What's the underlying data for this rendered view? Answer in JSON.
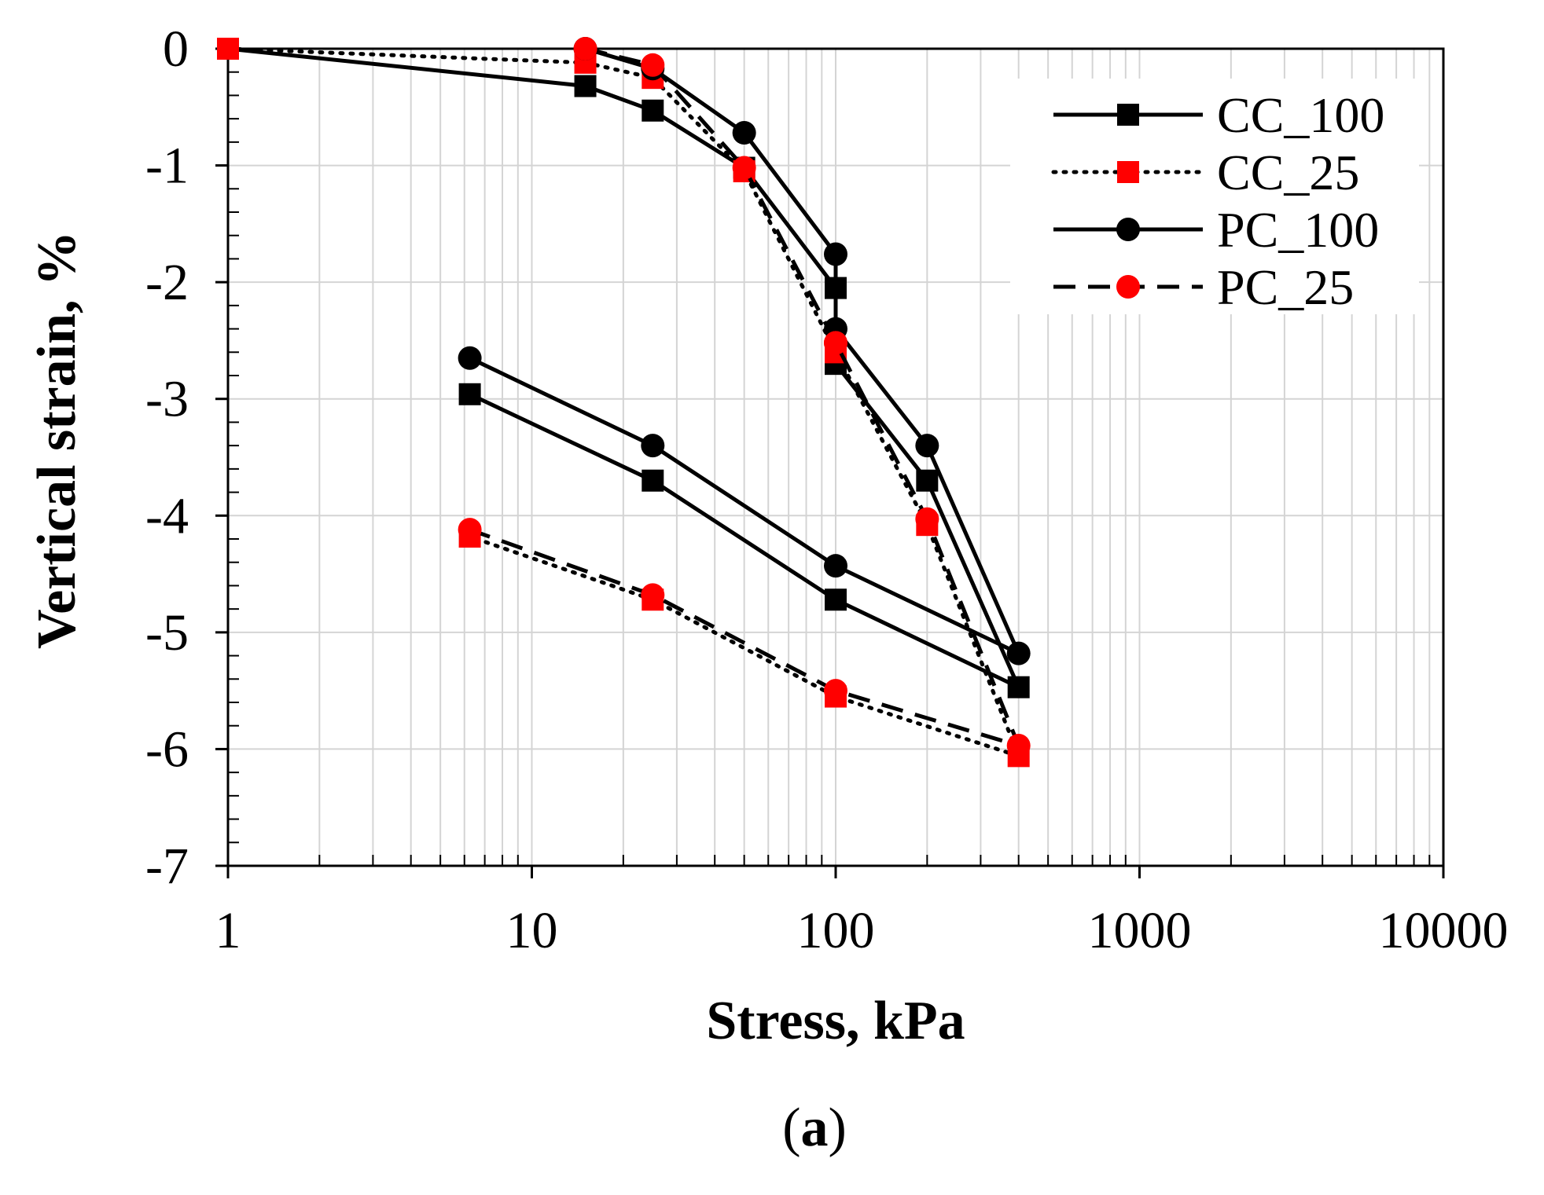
{
  "chart_data": {
    "type": "line",
    "title": "",
    "xlabel": "Stress, kPa",
    "ylabel": "Vertical strain, %",
    "xscale": "log",
    "xlim": [
      1,
      10000
    ],
    "ylim": [
      -7,
      0
    ],
    "xticks": [
      "1",
      "10",
      "100",
      "1000",
      "10000"
    ],
    "yticks": [
      "0",
      "-1",
      "-2",
      "-3",
      "-4",
      "-5",
      "-6",
      "-7"
    ],
    "grid": true,
    "legend_position": "top-right",
    "caption": {
      "open": "(",
      "letter": "a",
      "close": ")"
    },
    "series": [
      {
        "name": "CC_100",
        "line": "solid",
        "marker": "square",
        "marker_color": "#000000",
        "x": [
          1,
          15,
          25,
          50,
          100,
          100,
          200,
          400,
          100,
          25,
          6.25
        ],
        "y": [
          0,
          -0.32,
          -0.53,
          -1.02,
          -2.05,
          -2.7,
          -3.7,
          -5.47,
          -4.72,
          -3.7,
          -2.96
        ]
      },
      {
        "name": "CC_25",
        "line": "dotted",
        "marker": "square",
        "marker_color": "#ff0000",
        "x": [
          1,
          15,
          25,
          50,
          100,
          100,
          200,
          400,
          100,
          25,
          6.25
        ],
        "y": [
          0,
          -0.12,
          -0.25,
          -1.05,
          -2.6,
          -2.6,
          -4.08,
          -6.06,
          -5.55,
          -4.72,
          -4.18
        ]
      },
      {
        "name": "PC_100",
        "line": "solid",
        "marker": "circle",
        "marker_color": "#000000",
        "x": [
          15,
          25,
          50,
          100,
          100,
          200,
          400,
          100,
          25,
          6.25
        ],
        "y": [
          0,
          -0.17,
          -0.72,
          -1.76,
          -2.4,
          -3.4,
          -5.18,
          -4.43,
          -3.4,
          -2.65
        ]
      },
      {
        "name": "PC_25",
        "line": "dashed",
        "marker": "circle",
        "marker_color": "#ff0000",
        "x": [
          15,
          25,
          50,
          100,
          100,
          200,
          400,
          100,
          25,
          6.25
        ],
        "y": [
          0,
          -0.14,
          -1.02,
          -2.52,
          -2.52,
          -4.03,
          -5.97,
          -5.5,
          -4.68,
          -4.12
        ]
      }
    ]
  }
}
